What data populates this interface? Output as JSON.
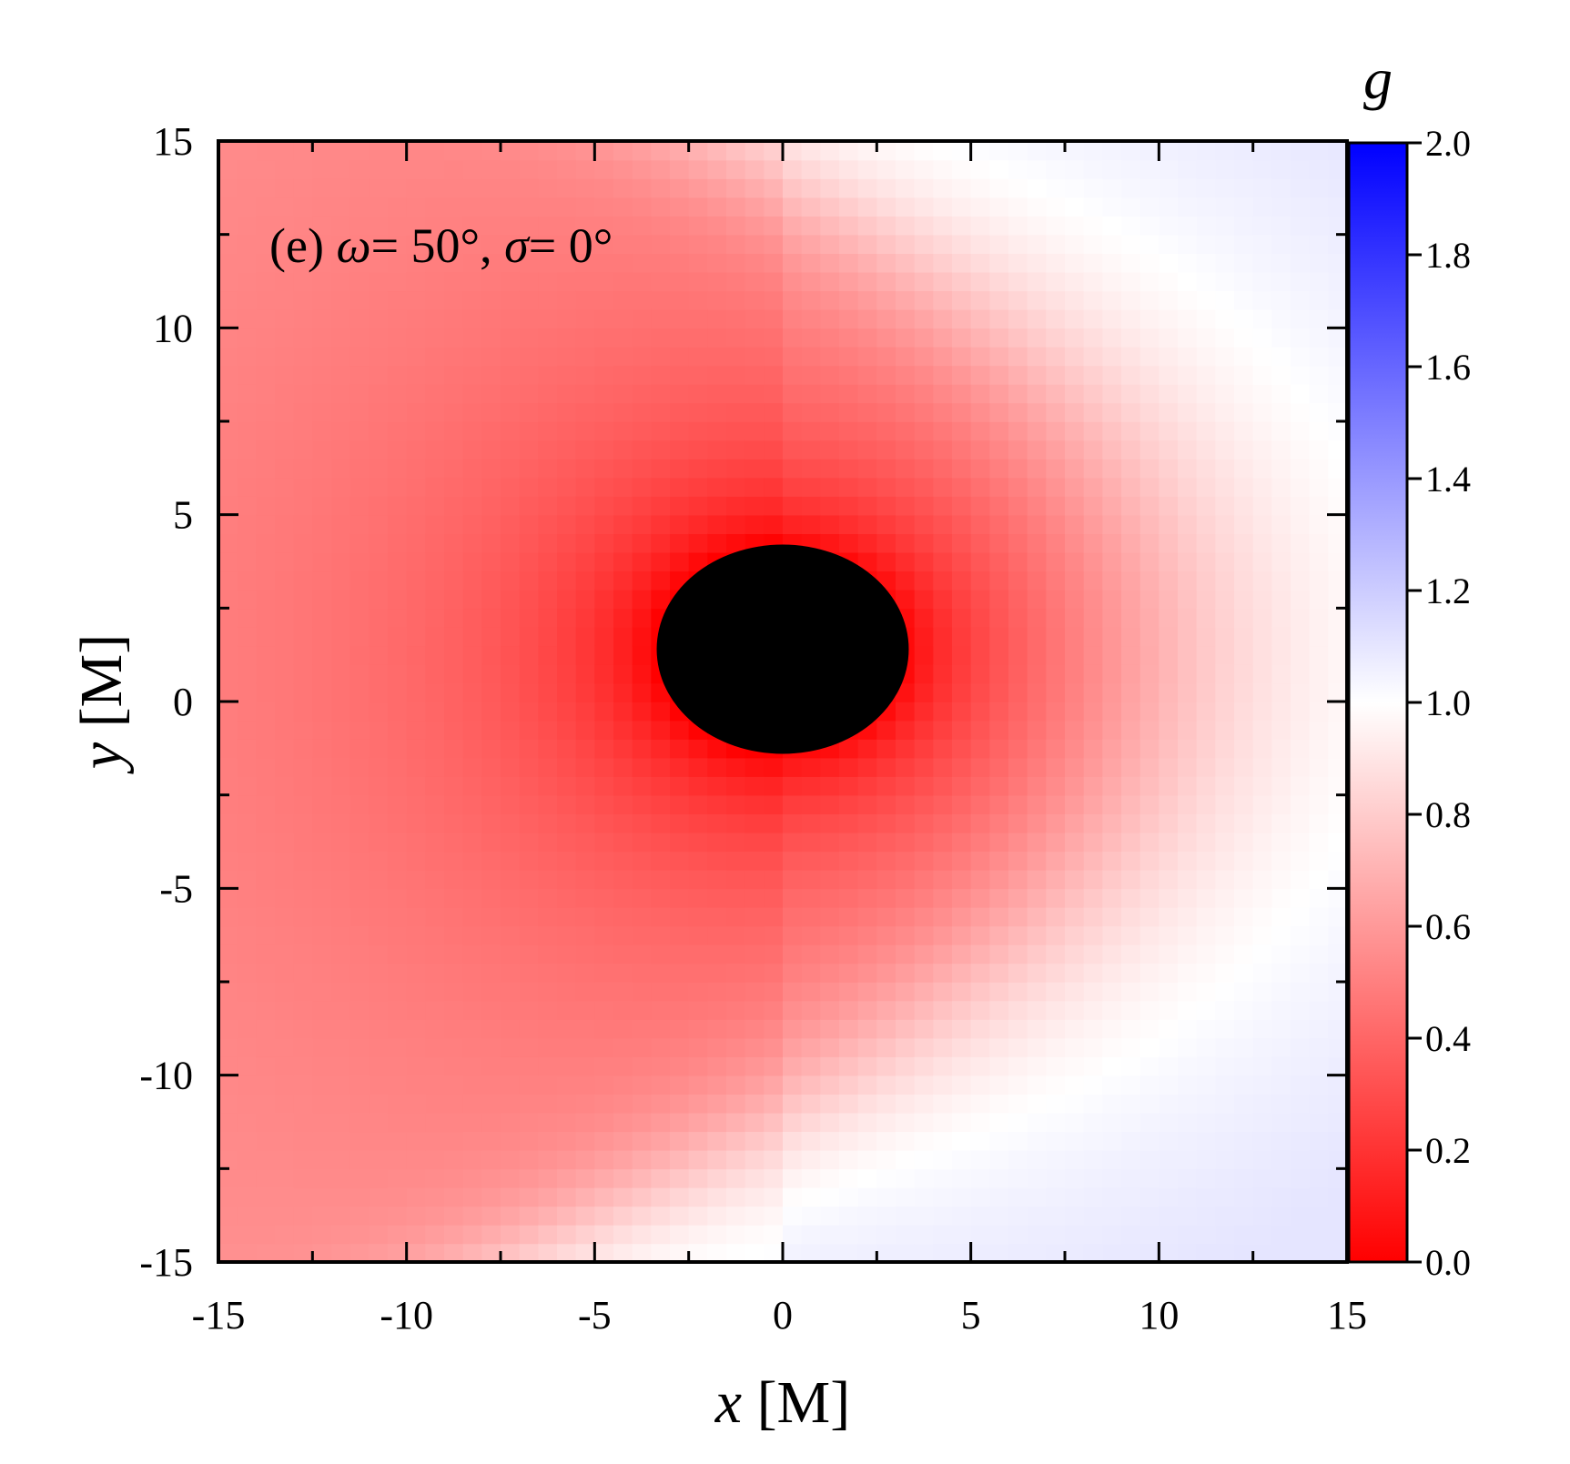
{
  "chart_data": {
    "type": "heatmap",
    "title": "",
    "annotation": {
      "prefix": "(e) ",
      "omega_symbol": "ω",
      "omega_value": "= 50°, ",
      "sigma_symbol": "σ",
      "sigma_value": "= 0°"
    },
    "xlabel": {
      "var": "x",
      "unit": " [M]"
    },
    "ylabel": {
      "var": "y",
      "unit": " [M]"
    },
    "xlim": [
      -15,
      15
    ],
    "ylim": [
      -15,
      15
    ],
    "x_ticks": [
      -15,
      -10,
      -5,
      0,
      5,
      10,
      15
    ],
    "y_ticks": [
      -15,
      -10,
      -5,
      0,
      5,
      10,
      15
    ],
    "x_tick_labels": [
      "-15",
      "-10",
      "-5",
      "0",
      "5",
      "10",
      "15"
    ],
    "y_tick_labels": [
      "-15",
      "-10",
      "-5",
      "0",
      "5",
      "10",
      "15"
    ],
    "colorbar": {
      "title": "g",
      "range": [
        0.0,
        2.0
      ],
      "ticks": [
        0.0,
        0.2,
        0.4,
        0.6,
        0.8,
        1.0,
        1.2,
        1.4,
        1.6,
        1.8,
        2.0
      ],
      "tick_labels": [
        "0.0",
        "0.2",
        "0.4",
        "0.6",
        "0.8",
        "1.0",
        "1.2",
        "1.4",
        "1.6",
        "1.8",
        "2.0"
      ],
      "colors": {
        "low": "#ff0000",
        "mid": "#ffffff",
        "high": "#0000ff"
      }
    },
    "shadow": {
      "center": [
        0,
        1.4
      ],
      "semi_axes": [
        3.35,
        2.8
      ],
      "color": "#000000"
    },
    "field": {
      "g_min": 0.0,
      "g_max": 1.1,
      "g_unity_contour_x": 9
    },
    "grid": false,
    "legend": "none"
  }
}
